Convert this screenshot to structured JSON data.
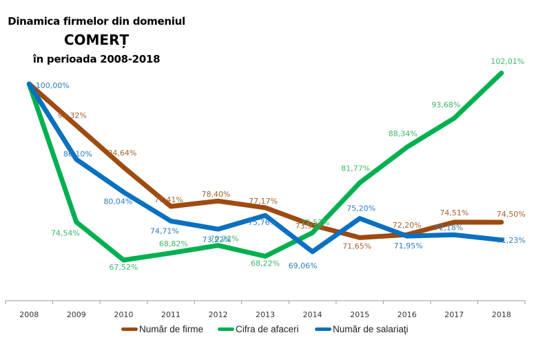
{
  "chart_data": {
    "type": "line",
    "title": "Dinamica firmelor din domeniul",
    "subtitle_main": "COMERȚ",
    "subtitle_period": "în perioada 2008-2018",
    "xlabel": "",
    "ylabel": "",
    "ylim": [
      60,
      105
    ],
    "grid": false,
    "legend_position": "bottom",
    "categories": [
      "2008",
      "2009",
      "2010",
      "2011",
      "2012",
      "2013",
      "2014",
      "2015",
      "2016",
      "2017",
      "2018"
    ],
    "series": [
      {
        "name": "Număr de firme",
        "color": "#9E4A10",
        "label_color": "#A9612F",
        "values": [
          100.0,
          92.32,
          84.64,
          77.41,
          78.4,
          77.17,
          73.97,
          71.65,
          72.2,
          74.51,
          74.5
        ],
        "labels": [
          "",
          "92,32%",
          "84,64%",
          "77,41%",
          "78,40%",
          "77,17%",
          "73,97%",
          "71,65%",
          "72,20%",
          "74,51%",
          "74,50%"
        ]
      },
      {
        "name": "Cifra de afaceri",
        "color": "#00B050",
        "label_color": "#3DB86A",
        "values": [
          100.0,
          74.54,
          67.52,
          68.82,
          70.22,
          68.22,
          72.57,
          81.77,
          88.34,
          93.68,
          102.01
        ],
        "labels": [
          "",
          "74,54%",
          "67,52%",
          "68,82%",
          "70,22%",
          "68,22%",
          "72,57%",
          "81,77%",
          "88,34%",
          "93,68%",
          "102,01%"
        ]
      },
      {
        "name": "Număr de salariaţi",
        "color": "#0A70C0",
        "label_color": "#2E7CC0",
        "values": [
          100.0,
          86.1,
          80.04,
          74.71,
          73.22,
          75.76,
          69.06,
          75.2,
          71.95,
          72.18,
          71.23
        ],
        "labels": [
          "100,00%",
          "86,10%",
          "80,04%",
          "74,71%",
          "73,22%",
          "75,76%",
          "69,06%",
          "75,20%",
          "71,95%",
          "72,18%",
          "71,23%"
        ]
      }
    ]
  },
  "title": {
    "line1": "Dinamica firmelor din domeniul",
    "line2": "COMERȚ",
    "line3": "în perioada 2008-2018"
  },
  "legend": [
    {
      "label": "Număr de firme",
      "color": "#9E4A10"
    },
    {
      "label": "Cifra de afaceri",
      "color": "#00B050"
    },
    {
      "label": "Număr de salariaţi",
      "color": "#0A70C0"
    }
  ]
}
